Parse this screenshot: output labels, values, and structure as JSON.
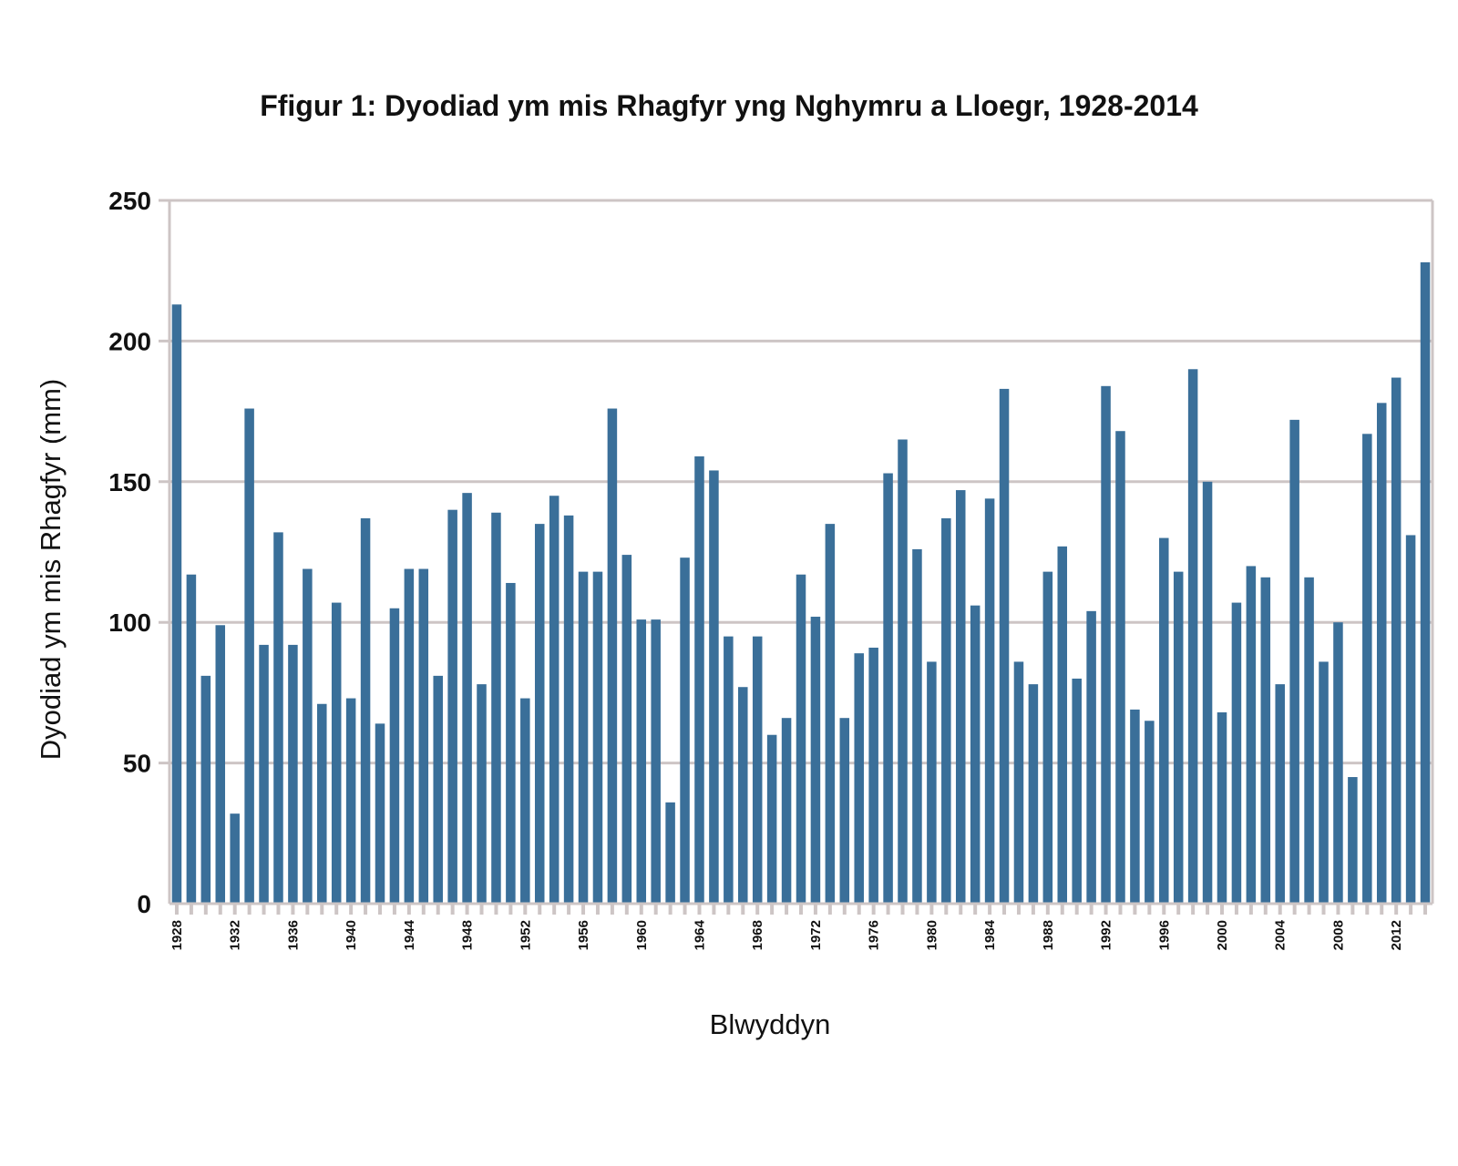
{
  "chart_data": {
    "type": "bar",
    "title": "Ffigur 1: Dyodiad ym mis Rhagfyr yng Nghymru a Lloegr, 1928-2014",
    "xlabel": "Blwyddyn",
    "ylabel": "Dyodiad ym mis Rhagfyr (mm)",
    "ylim": [
      0,
      250
    ],
    "yticks": [
      0,
      50,
      100,
      150,
      200,
      250
    ],
    "grid": true,
    "bar_color": "#3a6f99",
    "grid_color": "#cdc5c5",
    "x_tick_labels": [
      "1928",
      "1932",
      "1936",
      "1940",
      "1944",
      "1948",
      "1952",
      "1956",
      "1960",
      "1964",
      "1968",
      "1972",
      "1976",
      "1980",
      "1984",
      "1988",
      "1992",
      "1996",
      "2000",
      "2004",
      "2008",
      "2012"
    ],
    "categories": [
      1928,
      1929,
      1930,
      1931,
      1932,
      1933,
      1934,
      1935,
      1936,
      1937,
      1938,
      1939,
      1940,
      1941,
      1942,
      1943,
      1944,
      1945,
      1946,
      1947,
      1948,
      1949,
      1950,
      1951,
      1952,
      1953,
      1954,
      1955,
      1956,
      1957,
      1958,
      1959,
      1960,
      1961,
      1962,
      1963,
      1964,
      1965,
      1966,
      1967,
      1968,
      1969,
      1970,
      1971,
      1972,
      1973,
      1974,
      1975,
      1976,
      1977,
      1978,
      1979,
      1980,
      1981,
      1982,
      1983,
      1984,
      1985,
      1986,
      1987,
      1988,
      1989,
      1990,
      1991,
      1992,
      1993,
      1994,
      1995,
      1996,
      1997,
      1998,
      1999,
      2000,
      2001,
      2002,
      2003,
      2004,
      2005,
      2006,
      2007,
      2008,
      2009,
      2010,
      2011,
      2012,
      2013,
      2014
    ],
    "values": [
      213,
      117,
      81,
      99,
      32,
      176,
      92,
      132,
      92,
      119,
      71,
      107,
      73,
      137,
      64,
      105,
      119,
      119,
      81,
      140,
      146,
      78,
      139,
      114,
      73,
      135,
      145,
      138,
      118,
      118,
      176,
      124,
      101,
      101,
      36,
      123,
      159,
      154,
      95,
      77,
      95,
      60,
      66,
      117,
      102,
      135,
      66,
      89,
      91,
      153,
      165,
      126,
      86,
      137,
      147,
      106,
      144,
      183,
      86,
      78,
      118,
      127,
      80,
      104,
      184,
      168,
      69,
      65,
      130,
      118,
      190,
      150,
      68,
      107,
      120,
      116,
      78,
      172,
      116,
      86,
      100,
      45,
      167,
      178,
      187,
      131,
      228
    ]
  }
}
